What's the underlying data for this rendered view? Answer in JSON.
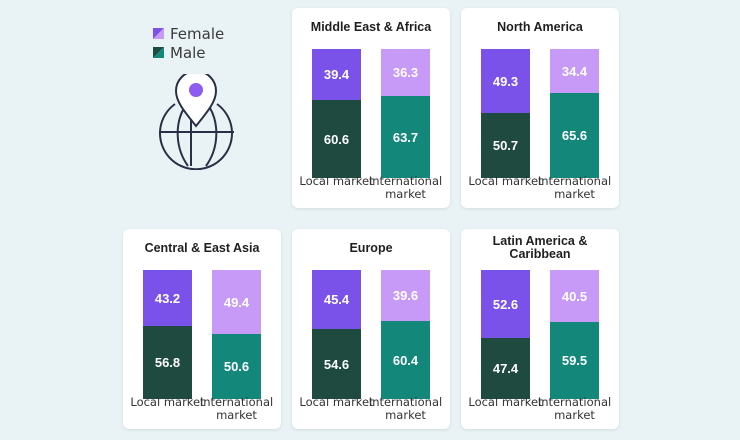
{
  "legend": [
    {
      "label": "Female",
      "icon": "female-swatch"
    },
    {
      "label": "Male",
      "icon": "male-swatch"
    }
  ],
  "colors": {
    "female_local": "#7b52e9",
    "female_intl": "#c69af6",
    "male_local": "#1f4a40",
    "male_intl": "#13877a"
  },
  "icon": "globe-location-pin-icon",
  "chart_data": [
    {
      "type": "bar",
      "stacked": true,
      "title": "Middle East & Africa",
      "categories": [
        "Local market",
        "International market"
      ],
      "series": [
        {
          "name": "Female",
          "values": [
            39.4,
            36.3
          ]
        },
        {
          "name": "Male",
          "values": [
            60.6,
            63.7
          ]
        }
      ]
    },
    {
      "type": "bar",
      "stacked": true,
      "title": "North America",
      "categories": [
        "Local market",
        "International market"
      ],
      "series": [
        {
          "name": "Female",
          "values": [
            49.3,
            34.4
          ]
        },
        {
          "name": "Male",
          "values": [
            50.7,
            65.6
          ]
        }
      ]
    },
    {
      "type": "bar",
      "stacked": true,
      "title": "Central & East Asia",
      "categories": [
        "Local market",
        "International market"
      ],
      "series": [
        {
          "name": "Female",
          "values": [
            43.2,
            49.4
          ]
        },
        {
          "name": "Male",
          "values": [
            56.8,
            50.6
          ]
        }
      ]
    },
    {
      "type": "bar",
      "stacked": true,
      "title": "Europe",
      "categories": [
        "Local market",
        "International market"
      ],
      "series": [
        {
          "name": "Female",
          "values": [
            45.4,
            39.6
          ]
        },
        {
          "name": "Male",
          "values": [
            54.6,
            60.4
          ]
        }
      ]
    },
    {
      "type": "bar",
      "stacked": true,
      "title": "Latin America & Caribbean",
      "categories": [
        "Local market",
        "International market"
      ],
      "series": [
        {
          "name": "Female",
          "values": [
            52.6,
            40.5
          ]
        },
        {
          "name": "Male",
          "values": [
            47.4,
            59.5
          ]
        }
      ]
    }
  ]
}
